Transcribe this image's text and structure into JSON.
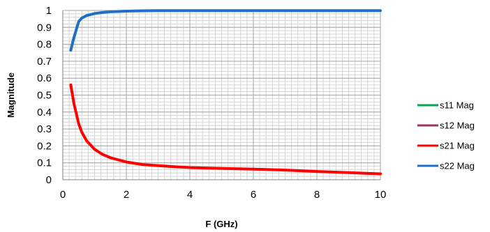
{
  "chart_data": {
    "type": "line",
    "title": "",
    "xlabel": "F (GHz)",
    "ylabel": "Magnitude",
    "xlim": [
      0,
      10
    ],
    "ylim": [
      0,
      1
    ],
    "x_ticks": [
      0,
      2,
      4,
      6,
      8,
      10
    ],
    "y_ticks": [
      0,
      0.1,
      0.2,
      0.3,
      0.4,
      0.5,
      0.6,
      0.7,
      0.8,
      0.9,
      1
    ],
    "x_tick_labels": [
      "0",
      "2",
      "4",
      "6",
      "8",
      "10"
    ],
    "y_tick_labels": [
      "0",
      "0.1",
      "0.2",
      "0.3",
      "0.4",
      "0.5",
      "0.6",
      "0.7",
      "0.8",
      "0.9",
      "1"
    ],
    "grid": true,
    "legend_position": "right",
    "series": [
      {
        "name": "s11 Mag",
        "color": "#00a651",
        "x": [],
        "y": []
      },
      {
        "name": "s12 Mag",
        "color": "#993366",
        "x": [],
        "y": []
      },
      {
        "name": "s21 Mag",
        "color": "#ff0000",
        "x": [
          0.25,
          0.35,
          0.5,
          0.6,
          0.75,
          1.0,
          1.25,
          1.5,
          2.0,
          2.5,
          3.0,
          3.5,
          4.0,
          5.0,
          6.0,
          7.0,
          8.0,
          9.0,
          10.0
        ],
        "y": [
          0.56,
          0.45,
          0.33,
          0.28,
          0.23,
          0.18,
          0.15,
          0.13,
          0.105,
          0.09,
          0.083,
          0.077,
          0.072,
          0.067,
          0.063,
          0.057,
          0.049,
          0.042,
          0.035
        ]
      },
      {
        "name": "s22 Mag",
        "color": "#1f6fc4",
        "x": [
          0.25,
          0.35,
          0.5,
          0.6,
          0.75,
          1.0,
          1.25,
          1.5,
          2.0,
          2.5,
          3.0,
          4.0,
          5.0,
          6.0,
          7.0,
          8.0,
          9.0,
          10.0
        ],
        "y": [
          0.765,
          0.84,
          0.935,
          0.955,
          0.97,
          0.982,
          0.988,
          0.992,
          0.996,
          0.998,
          0.999,
          0.999,
          0.999,
          0.999,
          0.999,
          0.999,
          0.999,
          0.999
        ]
      }
    ]
  }
}
